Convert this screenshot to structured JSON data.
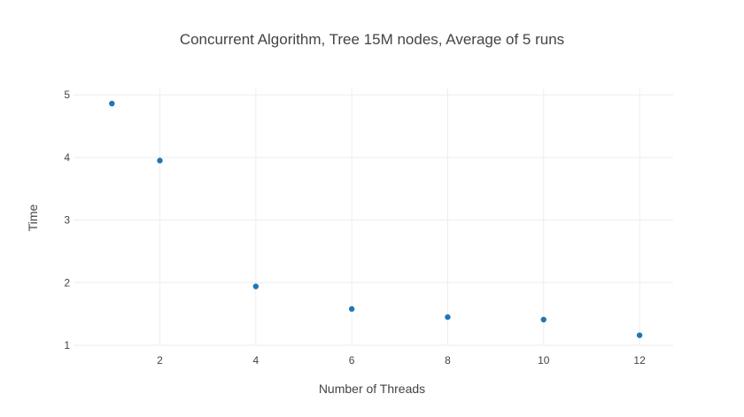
{
  "chart_data": {
    "type": "scatter",
    "title": "Concurrent Algorithm, Tree 15M nodes, Average of 5 runs",
    "xlabel": "Number of Threads",
    "ylabel": "Time",
    "x": [
      1,
      2,
      4,
      6,
      8,
      10,
      12
    ],
    "y": [
      4.86,
      3.95,
      1.94,
      1.58,
      1.45,
      1.41,
      1.16
    ],
    "xticks": [
      2,
      4,
      6,
      8,
      10,
      12
    ],
    "yticks": [
      1,
      2,
      3,
      4,
      5
    ],
    "xlim": [
      0.2,
      12.7
    ],
    "ylim": [
      1,
      5.1
    ],
    "grid": true,
    "legend": "none",
    "marker_color": "#1f77b4"
  }
}
